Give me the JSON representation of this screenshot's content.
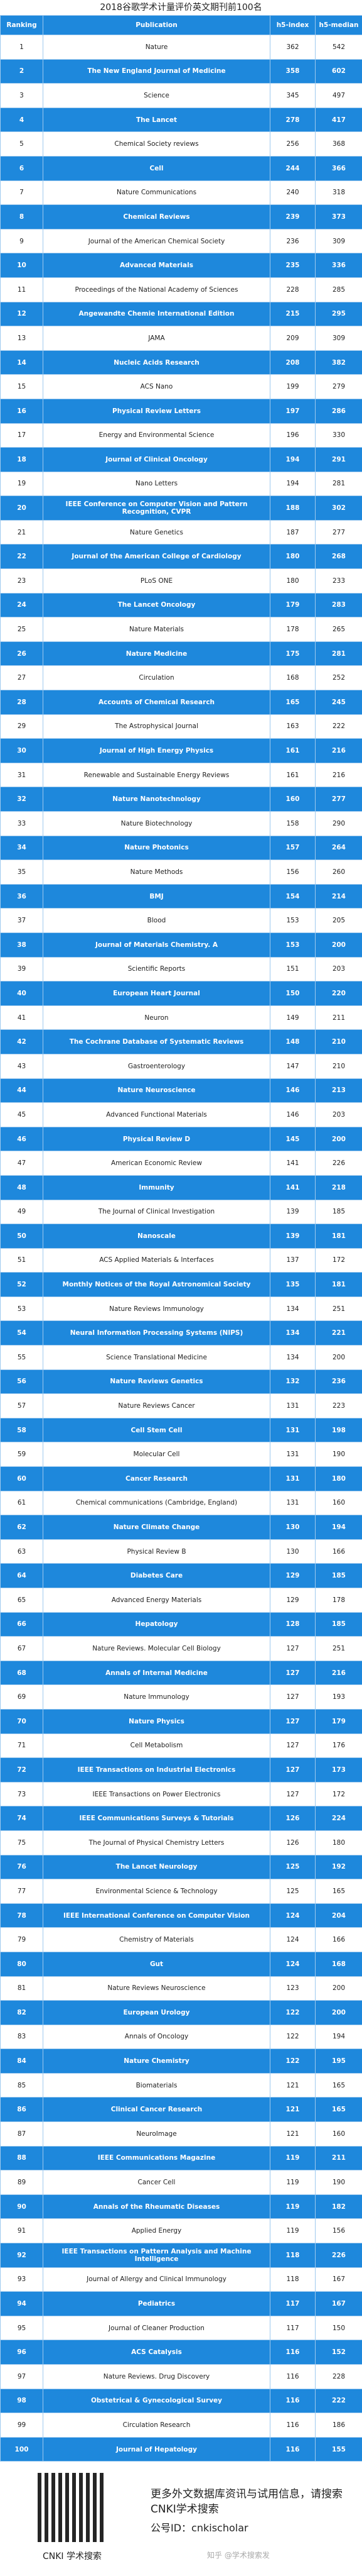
{
  "header": {
    "title": "2018谷歌学术计量评价英文期刊前100名"
  },
  "table": {
    "columns": [
      "Ranking",
      "Publication",
      "h5-index",
      "h5-median"
    ],
    "rows": [
      [
        1,
        "Nature",
        362,
        542
      ],
      [
        2,
        "The New England Journal of Medicine",
        358,
        602
      ],
      [
        3,
        "Science",
        345,
        497
      ],
      [
        4,
        "The Lancet",
        278,
        417
      ],
      [
        5,
        "Chemical Society reviews",
        256,
        368
      ],
      [
        6,
        "Cell",
        244,
        366
      ],
      [
        7,
        "Nature Communications",
        240,
        318
      ],
      [
        8,
        "Chemical Reviews",
        239,
        373
      ],
      [
        9,
        "Journal of the American Chemical Society",
        236,
        309
      ],
      [
        10,
        "Advanced Materials",
        235,
        336
      ],
      [
        11,
        "Proceedings of the National Academy of Sciences",
        228,
        285
      ],
      [
        12,
        "Angewandte Chemie International Edition",
        215,
        295
      ],
      [
        13,
        "JAMA",
        209,
        309
      ],
      [
        14,
        "Nucleic Acids Research",
        208,
        382
      ],
      [
        15,
        "ACS Nano",
        199,
        279
      ],
      [
        16,
        "Physical Review Letters",
        197,
        286
      ],
      [
        17,
        "Energy and Environmental Science",
        196,
        330
      ],
      [
        18,
        "Journal of Clinical Oncology",
        194,
        291
      ],
      [
        19,
        "Nano Letters",
        194,
        281
      ],
      [
        20,
        "IEEE Conference on Computer Vision and Pattern Recognition, CVPR",
        188,
        302
      ],
      [
        21,
        "Nature Genetics",
        187,
        277
      ],
      [
        22,
        "Journal of the American College of Cardiology",
        180,
        268
      ],
      [
        23,
        "PLoS ONE",
        180,
        233
      ],
      [
        24,
        "The Lancet Oncology",
        179,
        283
      ],
      [
        25,
        "Nature Materials",
        178,
        265
      ],
      [
        26,
        "Nature Medicine",
        175,
        281
      ],
      [
        27,
        "Circulation",
        168,
        252
      ],
      [
        28,
        "Accounts of Chemical Research",
        165,
        245
      ],
      [
        29,
        "The Astrophysical Journal",
        163,
        222
      ],
      [
        30,
        "Journal of High Energy Physics",
        161,
        216
      ],
      [
        31,
        "Renewable and Sustainable Energy Reviews",
        161,
        216
      ],
      [
        32,
        "Nature Nanotechnology",
        160,
        277
      ],
      [
        33,
        "Nature Biotechnology",
        158,
        290
      ],
      [
        34,
        "Nature Photonics",
        157,
        264
      ],
      [
        35,
        "Nature Methods",
        156,
        260
      ],
      [
        36,
        "BMJ",
        154,
        214
      ],
      [
        37,
        "Blood",
        153,
        205
      ],
      [
        38,
        "Journal of Materials Chemistry. A",
        153,
        200
      ],
      [
        39,
        "Scientific Reports",
        151,
        203
      ],
      [
        40,
        "European Heart Journal",
        150,
        220
      ],
      [
        41,
        "Neuron",
        149,
        211
      ],
      [
        42,
        "The Cochrane Database of Systematic Reviews",
        148,
        210
      ],
      [
        43,
        "Gastroenterology",
        147,
        210
      ],
      [
        44,
        "Nature Neuroscience",
        146,
        213
      ],
      [
        45,
        "Advanced Functional Materials",
        146,
        203
      ],
      [
        46,
        "Physical Review D",
        145,
        200
      ],
      [
        47,
        "American Economic Review",
        141,
        226
      ],
      [
        48,
        "Immunity",
        141,
        218
      ],
      [
        49,
        "The Journal of Clinical Investigation",
        139,
        185
      ],
      [
        50,
        "Nanoscale",
        139,
        181
      ],
      [
        51,
        "ACS Applied Materials & Interfaces",
        137,
        172
      ],
      [
        52,
        "Monthly Notices of the Royal Astronomical Society",
        135,
        181
      ],
      [
        53,
        "Nature Reviews Immunology",
        134,
        251
      ],
      [
        54,
        "Neural Information Processing Systems (NIPS)",
        134,
        221
      ],
      [
        55,
        "Science Translational Medicine",
        134,
        200
      ],
      [
        56,
        "Nature Reviews Genetics",
        132,
        236
      ],
      [
        57,
        "Nature Reviews Cancer",
        131,
        223
      ],
      [
        58,
        "Cell Stem Cell",
        131,
        198
      ],
      [
        59,
        "Molecular Cell",
        131,
        190
      ],
      [
        60,
        "Cancer Research",
        131,
        180
      ],
      [
        61,
        "Chemical communications (Cambridge, England)",
        131,
        160
      ],
      [
        62,
        "Nature Climate Change",
        130,
        194
      ],
      [
        63,
        "Physical Review B",
        130,
        166
      ],
      [
        64,
        "Diabetes Care",
        129,
        185
      ],
      [
        65,
        "Advanced Energy Materials",
        129,
        178
      ],
      [
        66,
        "Hepatology",
        128,
        185
      ],
      [
        67,
        "Nature Reviews. Molecular Cell Biology",
        127,
        251
      ],
      [
        68,
        "Annals of Internal Medicine",
        127,
        216
      ],
      [
        69,
        "Nature Immunology",
        127,
        193
      ],
      [
        70,
        "Nature Physics",
        127,
        179
      ],
      [
        71,
        "Cell Metabolism",
        127,
        176
      ],
      [
        72,
        "IEEE Transactions on Industrial Electronics",
        127,
        173
      ],
      [
        73,
        "IEEE Transactions on Power Electronics",
        127,
        172
      ],
      [
        74,
        "IEEE Communications Surveys & Tutorials",
        126,
        224
      ],
      [
        75,
        "The Journal of Physical Chemistry Letters",
        126,
        180
      ],
      [
        76,
        "The Lancet Neurology",
        125,
        192
      ],
      [
        77,
        "Environmental Science & Technology",
        125,
        165
      ],
      [
        78,
        "IEEE International Conference on Computer Vision",
        124,
        204
      ],
      [
        79,
        "Chemistry of Materials",
        124,
        166
      ],
      [
        80,
        "Gut",
        124,
        168
      ],
      [
        81,
        "Nature Reviews Neuroscience",
        123,
        200
      ],
      [
        82,
        "European Urology",
        122,
        200
      ],
      [
        83,
        "Annals of Oncology",
        122,
        194
      ],
      [
        84,
        "Nature Chemistry",
        122,
        195
      ],
      [
        85,
        "Biomaterials",
        121,
        165
      ],
      [
        86,
        "Clinical Cancer Research",
        121,
        165
      ],
      [
        87,
        "NeuroImage",
        121,
        160
      ],
      [
        88,
        "IEEE Communications Magazine",
        119,
        211
      ],
      [
        89,
        "Cancer Cell",
        119,
        190
      ],
      [
        90,
        "Annals of the Rheumatic Diseases",
        119,
        182
      ],
      [
        91,
        "Applied Energy",
        119,
        156
      ],
      [
        92,
        "IEEE Transactions on Pattern Analysis and Machine Intelligence",
        118,
        226
      ],
      [
        93,
        "Journal of Allergy and Clinical Immunology",
        118,
        167
      ],
      [
        94,
        "Pediatrics",
        117,
        167
      ],
      [
        95,
        "Journal of Cleaner Production",
        117,
        150
      ],
      [
        96,
        "ACS Catalysis",
        116,
        152
      ],
      [
        97,
        "Nature Reviews. Drug Discovery",
        116,
        228
      ],
      [
        98,
        "Obstetrical & Gynecological Survey",
        116,
        222
      ],
      [
        99,
        "Circulation Research",
        116,
        186
      ],
      [
        100,
        "Journal of Hepatology",
        116,
        155
      ]
    ]
  },
  "footer": {
    "qr_label": "CNKI 学术搜索",
    "promo": "更多外文数据库资讯与试用信息，请搜索CNKI学术搜索",
    "account": "公号ID：cnkischolar",
    "watermark": "知乎 @学术搜索发"
  }
}
